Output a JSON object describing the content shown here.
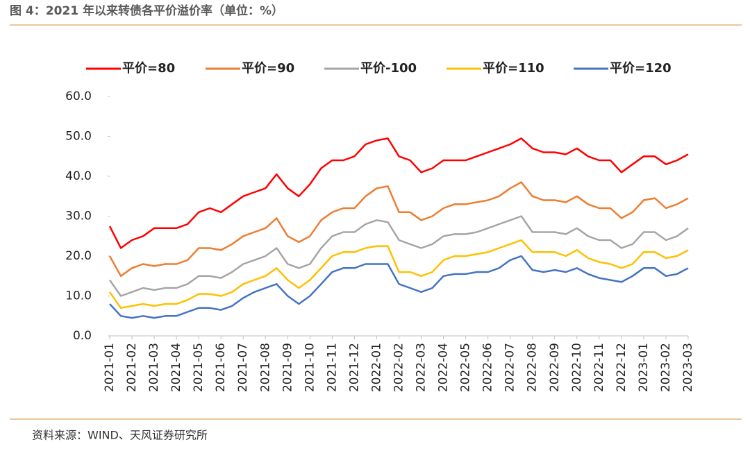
{
  "header": {
    "title": "图 4：2021 年以来转债各平价溢价率（单位：%）"
  },
  "chart_data": {
    "type": "line",
    "categories": [
      "2021-01",
      null,
      "2021-02",
      null,
      "2021-03",
      null,
      "2021-04",
      null,
      "2021-05",
      null,
      "2021-06",
      null,
      "2021-07",
      null,
      "2021-08",
      null,
      "2021-09",
      null,
      "2021-10",
      null,
      "2021-11",
      null,
      "2021-12",
      null,
      "2022-01",
      null,
      "2022-02",
      null,
      "2022-03",
      null,
      "2022-04",
      null,
      "2022-05",
      null,
      "2022-06",
      null,
      "2022-07",
      null,
      "2022-08",
      null,
      "2022-09",
      null,
      "2022-10",
      null,
      "2022-11",
      null,
      "2022-12",
      null,
      "2023-01",
      null,
      "2023-02",
      null,
      "2023-03"
    ],
    "series": [
      {
        "name": "平价=80",
        "color": "#ff0000",
        "values": [
          27.5,
          22,
          24,
          25,
          27,
          27,
          27,
          28,
          31,
          32,
          31,
          33,
          35,
          36,
          37,
          40.5,
          37,
          35,
          38,
          42,
          44,
          44,
          45,
          48,
          49,
          49.5,
          45,
          44,
          41,
          42,
          44,
          44,
          44,
          45,
          46,
          47,
          48,
          49.5,
          47,
          46,
          46,
          45.5,
          47,
          45,
          44,
          44,
          41,
          43,
          45,
          45,
          43,
          44,
          45.5
        ]
      },
      {
        "name": "平价=90",
        "color": "#ed7d31",
        "values": [
          20,
          15,
          17,
          18,
          17.5,
          18,
          18,
          19,
          22,
          22,
          21.5,
          23,
          25,
          26,
          27,
          29.5,
          25,
          23.5,
          25,
          29,
          31,
          32,
          32,
          35,
          37,
          37.5,
          31,
          31,
          29,
          30,
          32,
          33,
          33,
          33.5,
          34,
          35,
          37,
          38.5,
          35,
          34,
          34,
          33.5,
          35,
          33,
          32,
          32,
          29.5,
          31,
          34,
          34.5,
          32,
          33,
          34.5
        ]
      },
      {
        "name": "平价-100",
        "color": "#a5a5a5",
        "values": [
          14,
          10,
          11,
          12,
          11.5,
          12,
          12,
          13,
          15,
          15,
          14.5,
          16,
          18,
          19,
          20,
          22,
          18,
          17,
          18,
          22,
          25,
          26,
          26,
          28,
          29,
          28.5,
          24,
          23,
          22,
          23,
          25,
          25.5,
          25.5,
          26,
          27,
          28,
          29,
          30,
          26,
          26,
          26,
          25.5,
          27,
          25,
          24,
          24,
          22,
          23,
          26,
          26,
          24,
          25,
          27
        ]
      },
      {
        "name": "平价=110",
        "color": "#ffc000",
        "values": [
          11,
          7,
          7.5,
          8,
          7.5,
          8,
          8,
          9,
          10.5,
          10.5,
          10,
          11,
          13,
          14,
          15,
          17,
          14,
          12,
          14,
          17,
          20,
          21,
          21,
          22,
          22.5,
          22.5,
          16,
          16,
          15,
          16,
          19,
          20,
          20,
          20.5,
          21,
          22,
          23,
          24,
          21,
          21,
          21,
          20,
          21.5,
          19.5,
          18.5,
          18,
          17,
          18,
          21,
          21,
          19.5,
          20,
          21.5
        ]
      },
      {
        "name": "平价=120",
        "color": "#4472c4",
        "values": [
          8,
          5,
          4.5,
          5,
          4.5,
          5,
          5,
          6,
          7,
          7,
          6.5,
          7.5,
          9.5,
          11,
          12,
          13,
          10,
          8,
          10,
          13,
          16,
          17,
          17,
          18,
          18,
          18,
          13,
          12,
          11,
          12,
          15,
          15.5,
          15.5,
          16,
          16,
          17,
          19,
          20,
          16.5,
          16,
          16.5,
          16,
          17,
          15.5,
          14.5,
          14,
          13.5,
          15,
          17,
          17,
          15,
          15.5,
          17
        ]
      }
    ],
    "ylim": [
      0,
      60
    ],
    "yticks": [
      {
        "value": 0,
        "label": "0.0"
      },
      {
        "value": 10,
        "label": "10.0"
      },
      {
        "value": 20,
        "label": "20.0"
      },
      {
        "value": 30,
        "label": "30.0"
      },
      {
        "value": 40,
        "label": "40.0"
      },
      {
        "value": 50,
        "label": "50.0"
      },
      {
        "value": 60,
        "label": "60.0"
      }
    ],
    "legend": "top"
  },
  "footer": {
    "source": "资料来源：WIND、天风证券研究所"
  }
}
